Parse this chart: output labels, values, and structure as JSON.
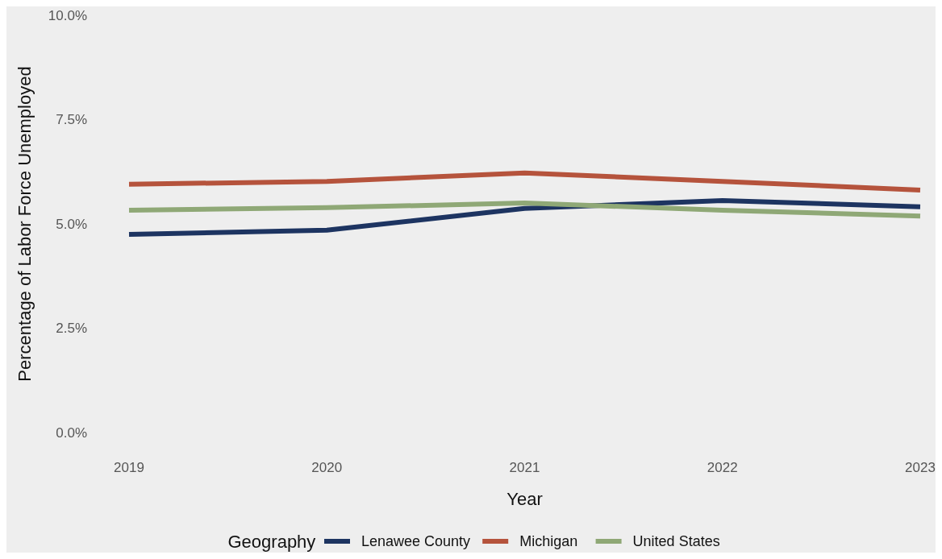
{
  "chart_data": {
    "type": "line",
    "xlabel": "Year",
    "ylabel": "Percentage of Labor Force Unemployed",
    "legend_title": "Geography",
    "legend": "bottom",
    "grid": false,
    "x": [
      2019,
      2020,
      2021,
      2022,
      2023
    ],
    "xlim": [
      2019,
      2023
    ],
    "xticks": [
      2019,
      2020,
      2021,
      2022,
      2023
    ],
    "ylim": [
      0,
      10
    ],
    "yticks": [
      {
        "value": 0,
        "label": "0.0%"
      },
      {
        "value": 2.5,
        "label": "2.5%"
      },
      {
        "value": 5,
        "label": "5.0%"
      },
      {
        "value": 7.5,
        "label": "7.5%"
      },
      {
        "value": 10,
        "label": "10.0%"
      }
    ],
    "series": [
      {
        "name": "Lenawee County",
        "color": "#1d3461",
        "values": [
          4.75,
          4.85,
          5.37,
          5.56,
          5.41
        ]
      },
      {
        "name": "Michigan",
        "color": "#b5533c",
        "values": [
          5.95,
          6.02,
          6.22,
          6.02,
          5.81
        ]
      },
      {
        "name": "United States",
        "color": "#8fa876",
        "values": [
          5.33,
          5.39,
          5.5,
          5.33,
          5.19
        ]
      }
    ]
  }
}
